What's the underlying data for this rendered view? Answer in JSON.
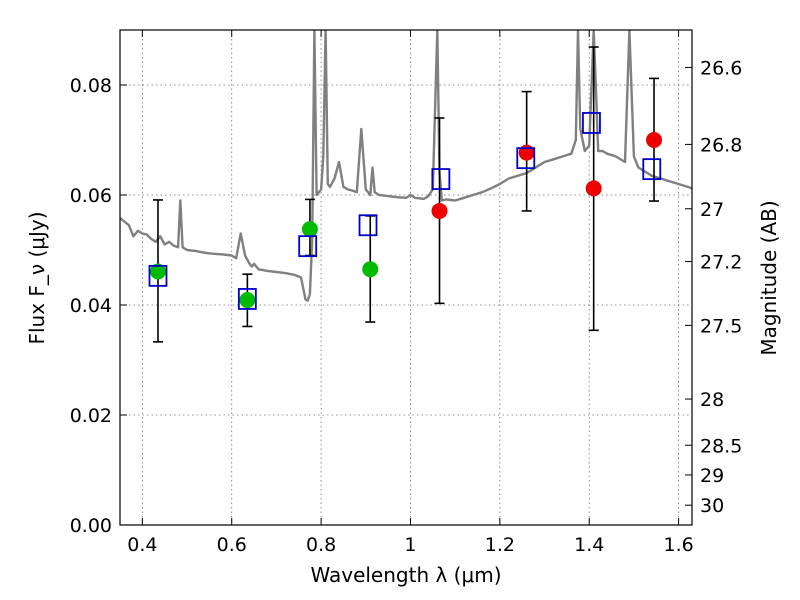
{
  "chart_data": {
    "type": "scatter",
    "xlabel": "Wavelength λ (μm)",
    "ylabel": "Flux F_ν (μJy)",
    "y2label": "Magnitude (AB)",
    "xlim": [
      0.35,
      1.63
    ],
    "ylim": [
      0.0,
      0.09
    ],
    "grid": true,
    "xticks": [
      0.4,
      0.6,
      0.8,
      1.0,
      1.2,
      1.4,
      1.6
    ],
    "xtick_labels": [
      "0.4",
      "0.6",
      "0.8",
      "1",
      "1.2",
      "1.4",
      "1.6"
    ],
    "yticks": [
      0.0,
      0.02,
      0.04,
      0.06,
      0.08
    ],
    "ytick_labels": [
      "0.00",
      "0.02",
      "0.04",
      "0.06",
      "0.08"
    ],
    "y2ticks": [
      {
        "label": "26.6",
        "flux": 0.0832
      },
      {
        "label": "26.8",
        "flux": 0.0692
      },
      {
        "label": "27",
        "flux": 0.0575
      },
      {
        "label": "27.2",
        "flux": 0.0479
      },
      {
        "label": "27.5",
        "flux": 0.0363
      },
      {
        "label": "28",
        "flux": 0.0229
      },
      {
        "label": "28.5",
        "flux": 0.0145
      },
      {
        "label": "29",
        "flux": 0.0091
      },
      {
        "label": "30",
        "flux": 0.0036
      }
    ],
    "colors": {
      "spectrum": "#808080",
      "green_points": "#00bb00",
      "red_points": "#ee0000",
      "model_squares": "#0000cc",
      "errorbars": "#000000"
    },
    "series": [
      {
        "kind": "observed",
        "color": "green",
        "x": [
          0.435,
          0.635,
          0.775,
          0.91
        ],
        "y": [
          0.0461,
          0.0409,
          0.0538,
          0.0465
        ],
        "yerr_low": [
          0.0333,
          0.0361,
          0.049,
          0.0369
        ],
        "yerr_high": [
          0.0591,
          0.0456,
          0.0592,
          0.0562
        ]
      },
      {
        "kind": "observed",
        "color": "red",
        "x": [
          1.065,
          1.26,
          1.41,
          1.545
        ],
        "y": [
          0.0571,
          0.0677,
          0.0612,
          0.07
        ],
        "yerr_low": [
          0.0403,
          0.0571,
          0.0354,
          0.0589
        ],
        "yerr_high": [
          0.074,
          0.0788,
          0.0869,
          0.0812
        ]
      },
      {
        "kind": "model",
        "marker": "open-square",
        "x": [
          0.435,
          0.635,
          0.77,
          0.905,
          1.068,
          1.258,
          1.405,
          1.54
        ],
        "y": [
          0.0453,
          0.0411,
          0.0507,
          0.0545,
          0.0629,
          0.0667,
          0.0731,
          0.0647
        ]
      }
    ],
    "spectrum": {
      "x": [
        0.35,
        0.37,
        0.38,
        0.39,
        0.4,
        0.41,
        0.42,
        0.43,
        0.44,
        0.45,
        0.46,
        0.47,
        0.48,
        0.485,
        0.49,
        0.5,
        0.52,
        0.54,
        0.56,
        0.58,
        0.6,
        0.61,
        0.62,
        0.63,
        0.64,
        0.645,
        0.65,
        0.66,
        0.68,
        0.7,
        0.72,
        0.74,
        0.755,
        0.765,
        0.77,
        0.775,
        0.78,
        0.785,
        0.79,
        0.8,
        0.805,
        0.81,
        0.815,
        0.82,
        0.83,
        0.84,
        0.85,
        0.86,
        0.87,
        0.88,
        0.89,
        0.9,
        0.91,
        0.915,
        0.92,
        0.93,
        0.95,
        0.97,
        0.99,
        1.0,
        1.01,
        1.02,
        1.03,
        1.04,
        1.05,
        1.06,
        1.065,
        1.07,
        1.08,
        1.1,
        1.12,
        1.14,
        1.16,
        1.18,
        1.2,
        1.22,
        1.24,
        1.26,
        1.27,
        1.28,
        1.29,
        1.3,
        1.32,
        1.34,
        1.36,
        1.37,
        1.375,
        1.38,
        1.39,
        1.4,
        1.41,
        1.42,
        1.43,
        1.44,
        1.46,
        1.48,
        1.49,
        1.5,
        1.51,
        1.52,
        1.53,
        1.54,
        1.56,
        1.58,
        1.6,
        1.62,
        1.63
      ],
      "y": [
        0.0558,
        0.0545,
        0.0525,
        0.0535,
        0.053,
        0.0528,
        0.052,
        0.0515,
        0.0525,
        0.051,
        0.0515,
        0.0508,
        0.0505,
        0.059,
        0.0505,
        0.05,
        0.0498,
        0.0495,
        0.0493,
        0.0492,
        0.049,
        0.0485,
        0.053,
        0.049,
        0.0475,
        0.047,
        0.0475,
        0.0465,
        0.0462,
        0.046,
        0.0458,
        0.0455,
        0.045,
        0.041,
        0.0408,
        0.042,
        0.052,
        0.09,
        0.06,
        0.061,
        0.067,
        0.09,
        0.062,
        0.0615,
        0.063,
        0.066,
        0.0615,
        0.061,
        0.0608,
        0.0605,
        0.072,
        0.061,
        0.06,
        0.065,
        0.0605,
        0.06,
        0.0598,
        0.0596,
        0.0595,
        0.06,
        0.0595,
        0.0594,
        0.0593,
        0.0598,
        0.061,
        0.09,
        0.064,
        0.059,
        0.0592,
        0.059,
        0.0595,
        0.06,
        0.0605,
        0.0612,
        0.062,
        0.063,
        0.0635,
        0.064,
        0.0645,
        0.065,
        0.0655,
        0.066,
        0.0665,
        0.067,
        0.0675,
        0.07,
        0.09,
        0.072,
        0.068,
        0.069,
        0.09,
        0.068,
        0.068,
        0.0675,
        0.067,
        0.066,
        0.09,
        0.067,
        0.065,
        0.0645,
        0.064,
        0.0635,
        0.063,
        0.0625,
        0.062,
        0.0615,
        0.0612
      ]
    }
  }
}
